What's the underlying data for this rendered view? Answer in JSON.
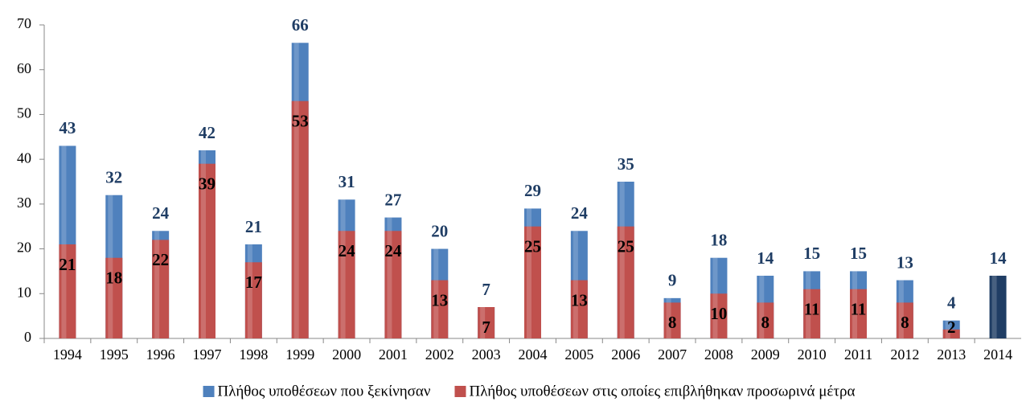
{
  "chart_data": {
    "type": "bar",
    "overlap": true,
    "categories": [
      "1994",
      "1995",
      "1996",
      "1997",
      "1998",
      "1999",
      "2000",
      "2001",
      "2002",
      "2003",
      "2004",
      "2005",
      "2006",
      "2007",
      "2008",
      "2009",
      "2010",
      "2011",
      "2012",
      "2013",
      "2014"
    ],
    "series": [
      {
        "name": "Πλήθος υποθέσεων που ξεκίνησαν",
        "color": "#4f81bd",
        "label_color": "#1f3d64",
        "values": [
          43,
          32,
          24,
          42,
          21,
          66,
          31,
          27,
          20,
          7,
          29,
          24,
          35,
          9,
          18,
          14,
          15,
          15,
          13,
          4,
          14
        ],
        "colors": [
          "#4f81bd",
          "#4f81bd",
          "#4f81bd",
          "#4f81bd",
          "#4f81bd",
          "#4f81bd",
          "#4f81bd",
          "#4f81bd",
          "#4f81bd",
          "#4f81bd",
          "#4f81bd",
          "#4f81bd",
          "#4f81bd",
          "#4f81bd",
          "#4f81bd",
          "#4f81bd",
          "#4f81bd",
          "#4f81bd",
          "#4f81bd",
          "#4f81bd",
          "#1f3d64"
        ]
      },
      {
        "name": "Πλήθος υποθέσεων στις οποίες επιβλήθηκαν προσωρινά μέτρα",
        "color": "#c0504d",
        "label_color": "#000000",
        "values": [
          21,
          18,
          22,
          39,
          17,
          53,
          24,
          24,
          13,
          7,
          25,
          13,
          25,
          8,
          10,
          8,
          11,
          11,
          8,
          2,
          null
        ]
      }
    ],
    "ylim": [
      0,
      70
    ],
    "yticks": [
      0,
      10,
      20,
      30,
      40,
      50,
      60,
      70
    ],
    "grid": false,
    "legend": "bottom"
  }
}
